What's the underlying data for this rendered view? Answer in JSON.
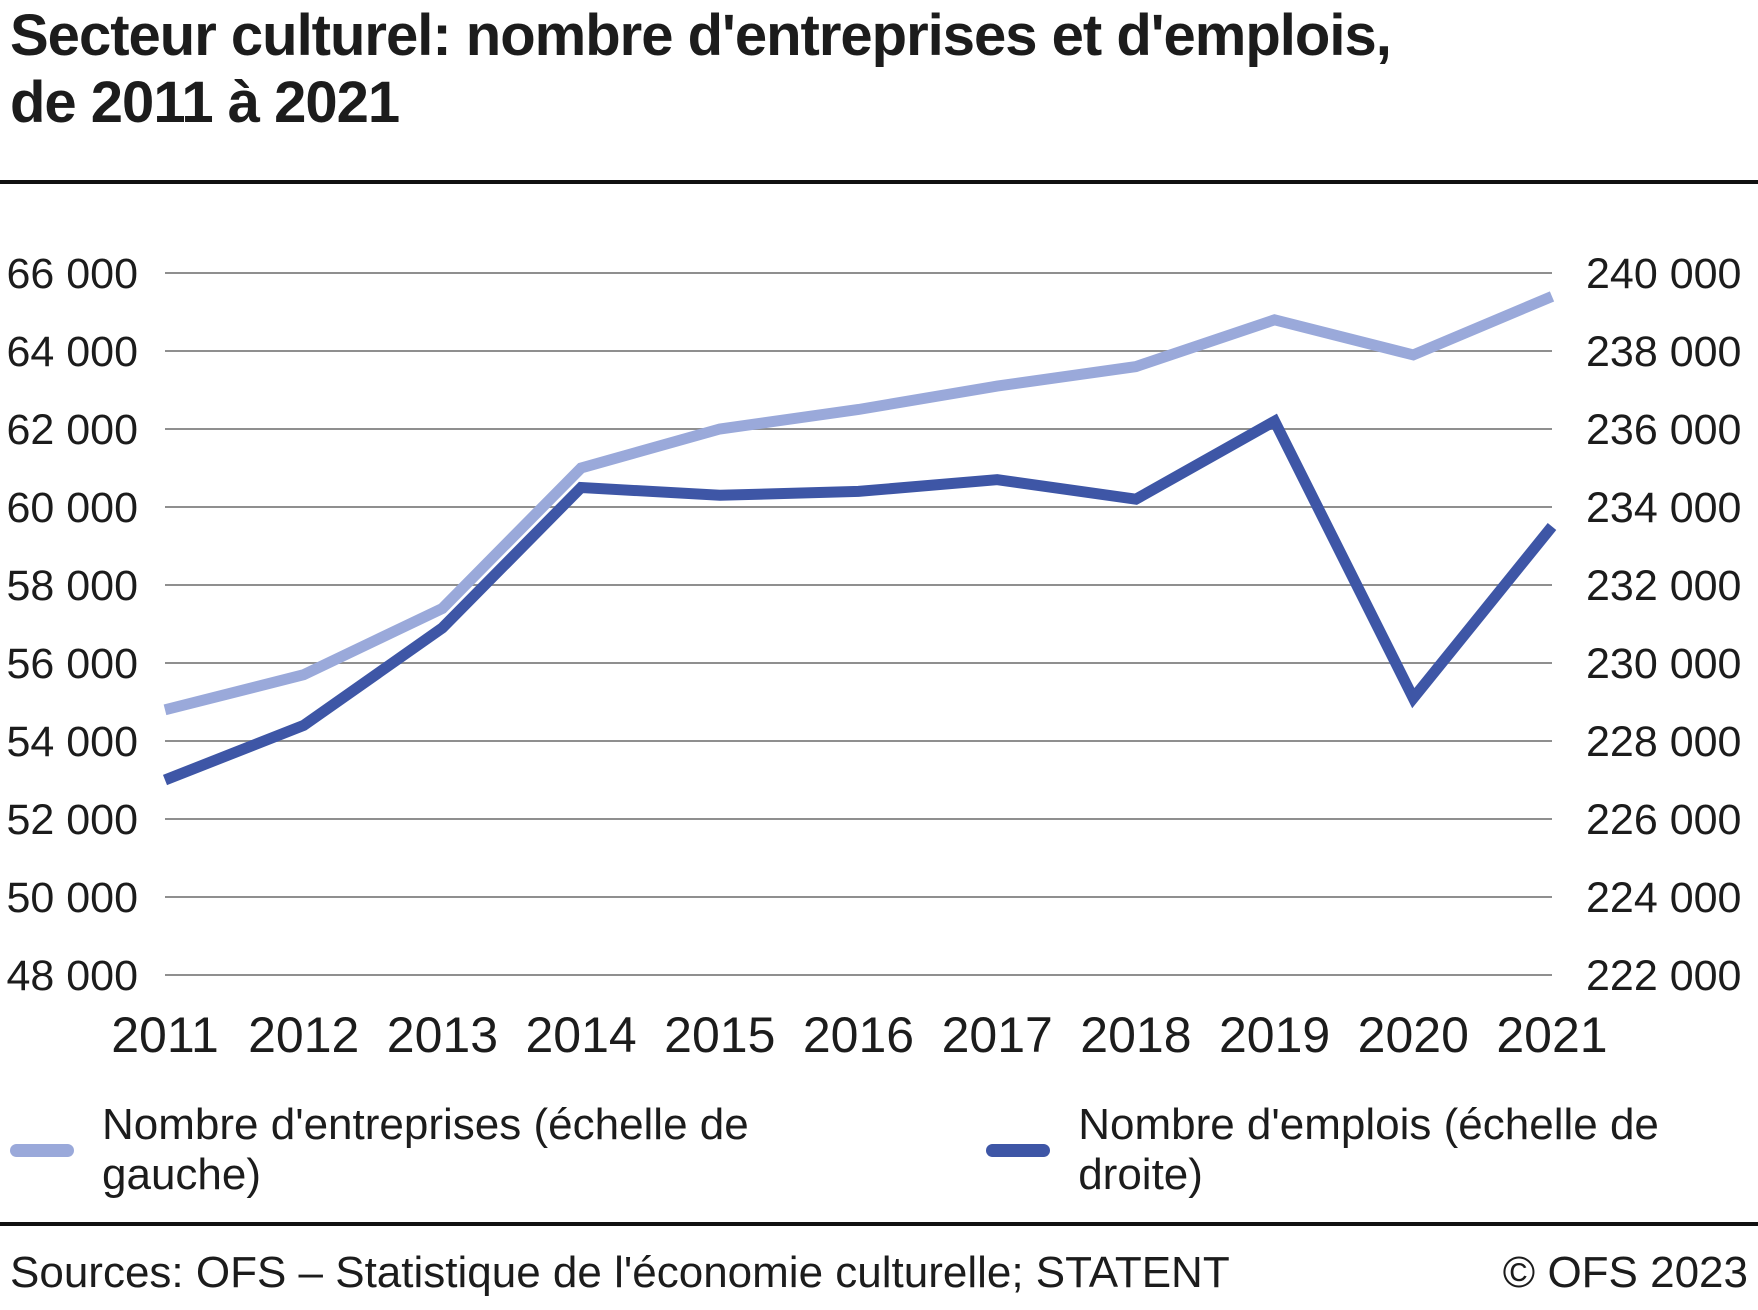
{
  "title": {
    "lines": [
      "Secteur culturel: nombre d'entreprises et d'emplois,",
      "de 2011 à 2021"
    ]
  },
  "colors": {
    "background": "#ffffff",
    "text": "#1c1c1c",
    "rule": "#111111",
    "grid": "#8f8f8f",
    "entreprises_line": "#9aa9da",
    "emplois_line": "#3e56a6"
  },
  "chart_data": {
    "type": "line",
    "title": "Secteur culturel: nombre d'entreprises et d'emplois, de 2011 à 2021",
    "grid": true,
    "legend_position": "bottom",
    "x": [
      2011,
      2012,
      2013,
      2014,
      2015,
      2016,
      2017,
      2018,
      2019,
      2020,
      2021
    ],
    "series": [
      {
        "id": "entreprises",
        "name": "Nombre d'entreprises (échelle de gauche)",
        "axis": "left",
        "color": "#9aa9da",
        "values": [
          54800,
          55700,
          57400,
          61000,
          62000,
          62500,
          63100,
          63600,
          64800,
          63900,
          65400
        ]
      },
      {
        "id": "emplois",
        "name": "Nombre d'emplois (échelle de droite)",
        "axis": "right",
        "color": "#3e56a6",
        "values": [
          227000,
          228400,
          230900,
          234500,
          234300,
          234400,
          234700,
          234200,
          236200,
          229100,
          233500
        ]
      }
    ],
    "left_axis": {
      "min": 48000,
      "max": 66000,
      "step": 2000,
      "tick_labels": [
        "48 000",
        "50 000",
        "52 000",
        "54 000",
        "56 000",
        "58 000",
        "60 000",
        "62 000",
        "64 000",
        "66 000"
      ]
    },
    "right_axis": {
      "min": 222000,
      "max": 240000,
      "step": 2000,
      "tick_labels": [
        "222 000",
        "224 000",
        "226 000",
        "228 000",
        "230 000",
        "232 000",
        "234 000",
        "236 000",
        "238 000",
        "240 000"
      ]
    }
  },
  "footer": {
    "sources": "Sources: OFS – Statistique de l'économie culturelle; STATENT",
    "copyright": "© OFS 2023"
  }
}
